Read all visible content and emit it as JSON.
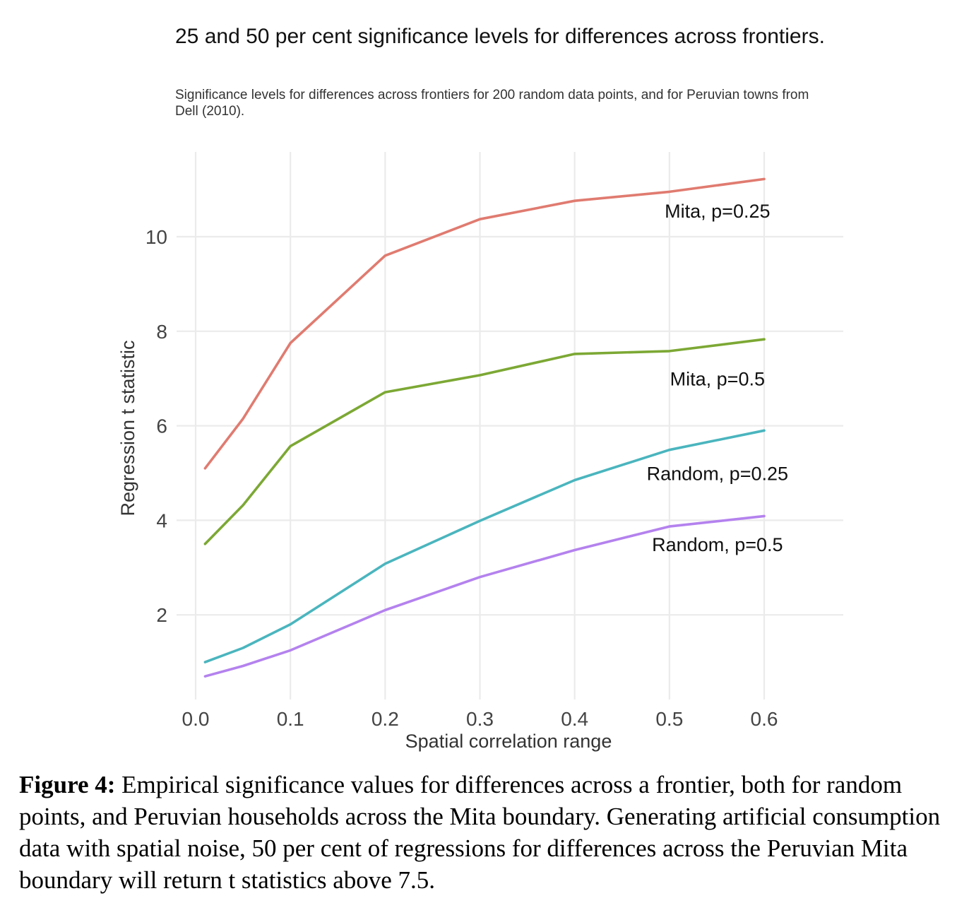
{
  "chart_data": {
    "type": "line",
    "title": "25 and 50 per cent significance levels for differences across frontiers.",
    "subtitle": "Significance levels for differences across frontiers for 200 random data points, and for Peruvian towns from Dell (2010).",
    "xlabel": "Spatial correlation range",
    "ylabel": "Regression t statistic",
    "xlim": [
      0.0,
      0.6
    ],
    "ylim": [
      0.0,
      11.7
    ],
    "x_ticks": [
      0.0,
      0.1,
      0.2,
      0.3,
      0.4,
      0.5,
      0.6
    ],
    "x_tick_labels": [
      "0.0",
      "0.1",
      "0.2",
      "0.3",
      "0.4",
      "0.5",
      "0.6"
    ],
    "y_ticks": [
      2,
      4,
      6,
      8,
      10
    ],
    "y_tick_labels": [
      "2",
      "4",
      "6",
      "8",
      "10"
    ],
    "grid": true,
    "x": [
      0.01,
      0.05,
      0.1,
      0.2,
      0.3,
      0.4,
      0.5,
      0.6
    ],
    "series": [
      {
        "name": "Mita, p=0.25",
        "color": "#e07b70",
        "values": [
          5.1,
          6.15,
          7.75,
          9.6,
          10.37,
          10.76,
          10.95,
          11.22
        ],
        "label_at": [
          0.5,
          10.55
        ]
      },
      {
        "name": "Mita, p=0.5",
        "color": "#7ca834",
        "values": [
          3.5,
          4.32,
          5.57,
          6.71,
          7.07,
          7.52,
          7.58,
          7.83
        ],
        "label_at": [
          0.5,
          7.0
        ]
      },
      {
        "name": "Random, p=0.25",
        "color": "#4ab5be",
        "values": [
          1.0,
          1.3,
          1.8,
          3.08,
          3.99,
          4.85,
          5.49,
          5.9
        ],
        "label_at": [
          0.5,
          5.0
        ]
      },
      {
        "name": "Random, p=0.5",
        "color": "#b482ee",
        "values": [
          0.7,
          0.92,
          1.25,
          2.1,
          2.8,
          3.37,
          3.87,
          4.09
        ],
        "label_at": [
          0.5,
          3.5
        ]
      }
    ]
  },
  "caption": {
    "label": "Figure 4:",
    "text": " Empirical significance values for differences across a frontier, both for random points, and Peruvian households across the Mita boundary.  Generating artificial consumption data with spatial noise, 50 per cent of regressions for differences across the Peruvian Mita boundary will return t statistics above 7.5."
  }
}
